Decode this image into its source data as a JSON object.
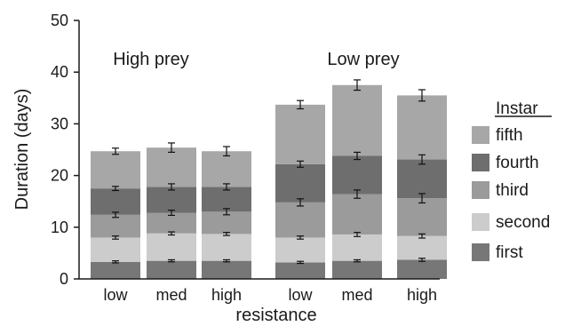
{
  "chart_data": {
    "type": "bar",
    "stacked": true,
    "categories": [
      "low",
      "med",
      "high",
      "low",
      "med",
      "high"
    ],
    "group_labels": [
      "High prey",
      "Low prey"
    ],
    "xlabel": "resistance",
    "ylabel": "Duration (days)",
    "ylim": [
      0,
      50
    ],
    "yticks": [
      0,
      10,
      20,
      30,
      40,
      50
    ],
    "grid": false,
    "legend_title": "Instar",
    "legend_placement": "right",
    "legend_order": [
      "fifth",
      "fourth",
      "third",
      "second",
      "first"
    ],
    "series": [
      {
        "name": "first",
        "color": "#777777",
        "values": [
          3.3,
          3.5,
          3.5,
          3.2,
          3.5,
          3.7
        ],
        "errors": [
          0.2,
          0.2,
          0.2,
          0.2,
          0.2,
          0.3
        ]
      },
      {
        "name": "second",
        "color": "#cccccc",
        "values": [
          4.7,
          5.3,
          5.2,
          4.8,
          5.1,
          4.6
        ],
        "errors": [
          0.3,
          0.3,
          0.3,
          0.3,
          0.4,
          0.4
        ]
      },
      {
        "name": "third",
        "color": "#9b9b9b",
        "values": [
          4.4,
          4.0,
          4.3,
          6.8,
          7.8,
          7.3
        ],
        "errors": [
          0.5,
          0.5,
          0.6,
          0.7,
          0.8,
          0.9
        ]
      },
      {
        "name": "fourth",
        "color": "#6e6e6e",
        "values": [
          5.1,
          5.0,
          4.8,
          7.4,
          7.4,
          7.5
        ],
        "errors": [
          0.4,
          0.6,
          0.6,
          0.6,
          0.7,
          0.9
        ]
      },
      {
        "name": "fifth",
        "color": "#a7a7a7",
        "values": [
          7.2,
          7.6,
          6.9,
          11.5,
          13.7,
          12.4
        ],
        "errors": [
          0.6,
          0.9,
          0.9,
          0.8,
          1.0,
          1.1
        ]
      }
    ]
  }
}
